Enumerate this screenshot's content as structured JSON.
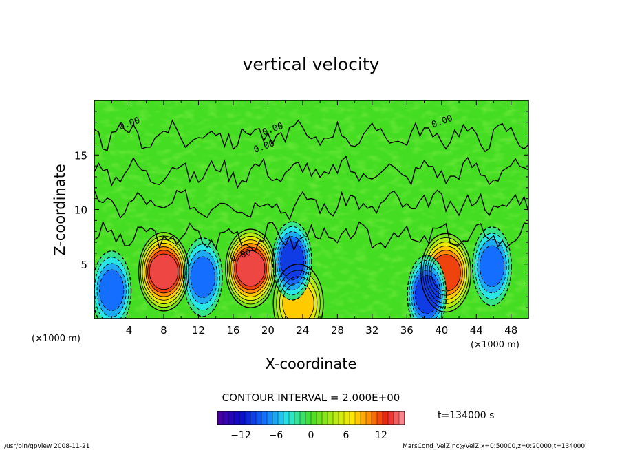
{
  "chart_data": {
    "type": "heatmap",
    "title": "vertical velocity",
    "xlabel": "X-coordinate",
    "ylabel": "Z-coordinate",
    "x_units": "(×1000 m)",
    "y_units": "(×1000 m)",
    "xlim": [
      0,
      50
    ],
    "ylim": [
      0,
      20
    ],
    "x_ticks": [
      4,
      8,
      12,
      16,
      20,
      24,
      28,
      32,
      36,
      40,
      44,
      48
    ],
    "y_ticks": [
      5,
      10,
      15
    ],
    "contour_interval_text": "CONTOUR INTERVAL = 2.000E+00",
    "contour_labels": [
      "0.00",
      "0.00",
      "0.00",
      "0.00",
      "0.00"
    ],
    "time_text": "t=134000  s",
    "colorbar": {
      "min": -16,
      "max": 16,
      "ticks": [
        -12,
        -6,
        0,
        6,
        12
      ]
    },
    "features": [
      {
        "x": 8,
        "z": 4.3,
        "value": 14,
        "sign": "updraft"
      },
      {
        "x": 18,
        "z": 4.6,
        "value": 14,
        "sign": "updraft"
      },
      {
        "x": 23.5,
        "z": 1.4,
        "value": 8,
        "sign": "updraft"
      },
      {
        "x": 40.5,
        "z": 4.2,
        "value": 12,
        "sign": "updraft"
      },
      {
        "x": 2,
        "z": 2.6,
        "value": -8,
        "sign": "downdraft"
      },
      {
        "x": 12.5,
        "z": 3.8,
        "value": -8,
        "sign": "downdraft"
      },
      {
        "x": 22.8,
        "z": 5.3,
        "value": -10,
        "sign": "downdraft"
      },
      {
        "x": 38.3,
        "z": 2.2,
        "value": -10,
        "sign": "downdraft"
      },
      {
        "x": 45.8,
        "z": 4.8,
        "value": -8,
        "sign": "downdraft"
      }
    ]
  },
  "footer": {
    "left": "/usr/bin/gpview   2008-11-21",
    "right": "MarsCond_VelZ.nc@VelZ,x=0:50000,z=0:20000,t=134000"
  }
}
